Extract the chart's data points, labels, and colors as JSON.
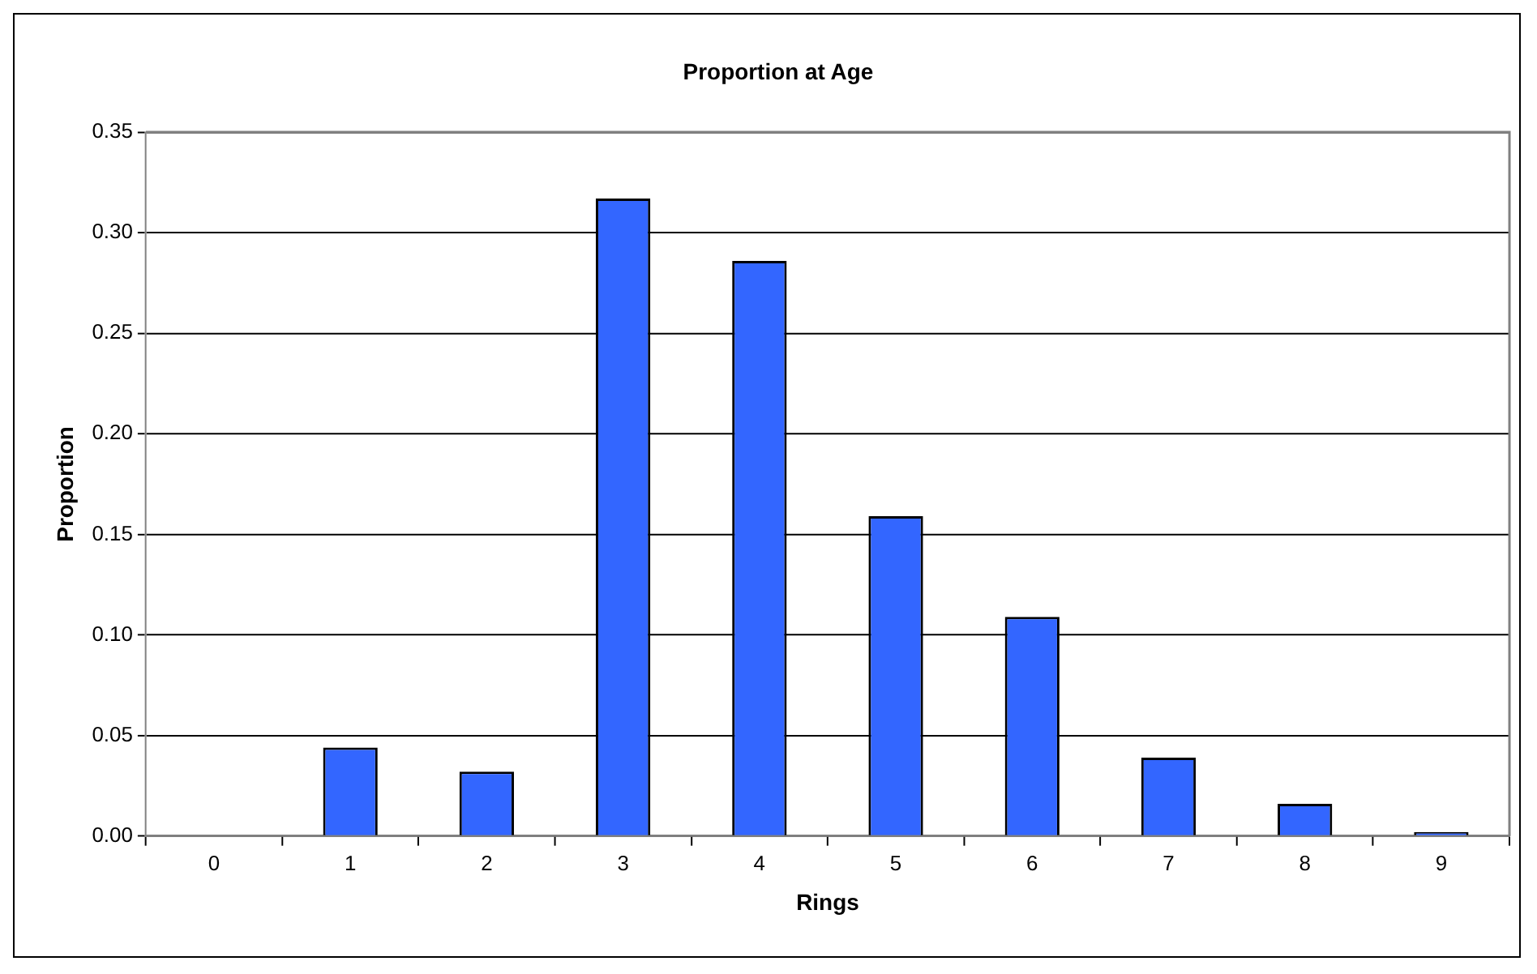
{
  "chart_data": {
    "type": "bar",
    "title": "Proportion at Age",
    "xlabel": "Rings",
    "ylabel": "Proportion",
    "categories": [
      "0",
      "1",
      "2",
      "3",
      "4",
      "5",
      "6",
      "7",
      "8",
      "9"
    ],
    "values": [
      0,
      0.044,
      0.032,
      0.317,
      0.286,
      0.159,
      0.109,
      0.039,
      0.016,
      0.002
    ],
    "color": "#3366ff",
    "ylim": [
      0,
      0.35
    ],
    "yticks": [
      {
        "value": 0,
        "label": "0.00"
      },
      {
        "value": 0.05,
        "label": "0.05"
      },
      {
        "value": 0.1,
        "label": "0.10"
      },
      {
        "value": 0.15,
        "label": "0.15"
      },
      {
        "value": 0.2,
        "label": "0.20"
      },
      {
        "value": 0.25,
        "label": "0.25"
      },
      {
        "value": 0.3,
        "label": "0.30"
      },
      {
        "value": 0.35,
        "label": "0.35"
      }
    ],
    "grid": "y",
    "legend": false
  }
}
